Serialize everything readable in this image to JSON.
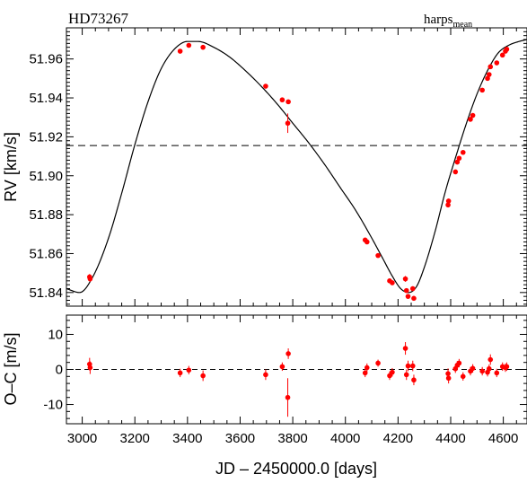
{
  "chart_data": [
    {
      "type": "scatter",
      "panel": "rv",
      "star": "HD73267",
      "instrument": "harps",
      "instrument_sub": "mean",
      "ylabel": "RV [km/s]",
      "xlim": [
        2940,
        4690
      ],
      "ylim": [
        51.833,
        51.976
      ],
      "yticks": [
        51.84,
        51.86,
        51.88,
        51.9,
        51.92,
        51.94,
        51.96
      ],
      "grid": false,
      "mean_rv": 51.9155,
      "model": {
        "name": "Keplerian fit",
        "x": [
          2940,
          2990,
          3040,
          3100,
          3150,
          3200,
          3250,
          3300,
          3350,
          3400,
          3440,
          3500,
          3560,
          3620,
          3680,
          3740,
          3800,
          3860,
          3920,
          3980,
          4040,
          4100,
          4140,
          4180,
          4210,
          4240,
          4270,
          4300,
          4340,
          4380,
          4420,
          4460,
          4500,
          4540,
          4580,
          4620,
          4660,
          4690
        ],
        "y": [
          51.842,
          51.84,
          51.848,
          51.868,
          51.891,
          51.916,
          51.938,
          51.955,
          51.965,
          51.969,
          51.969,
          51.966,
          51.961,
          51.954,
          51.946,
          51.937,
          51.927,
          51.917,
          51.906,
          51.894,
          51.882,
          51.868,
          51.858,
          51.848,
          51.842,
          51.84,
          51.843,
          51.853,
          51.871,
          51.892,
          51.91,
          51.927,
          51.942,
          51.954,
          51.963,
          51.967,
          51.969,
          51.97
        ]
      },
      "points": [
        {
          "x": 3028,
          "y": 51.848,
          "err": 0.0015
        },
        {
          "x": 3030,
          "y": 51.847,
          "err": 0.0015
        },
        {
          "x": 3372,
          "y": 51.964,
          "err": 0.001
        },
        {
          "x": 3405,
          "y": 51.967,
          "err": 0.001
        },
        {
          "x": 3459,
          "y": 51.966,
          "err": 0.001
        },
        {
          "x": 3697,
          "y": 51.946,
          "err": 0.001
        },
        {
          "x": 3760,
          "y": 51.939,
          "err": 0.001
        },
        {
          "x": 3781,
          "y": 51.927,
          "err": 0.005
        },
        {
          "x": 3783,
          "y": 51.938,
          "err": 0.0012
        },
        {
          "x": 4075,
          "y": 51.867,
          "err": 0.001
        },
        {
          "x": 4082,
          "y": 51.866,
          "err": 0.001
        },
        {
          "x": 4124,
          "y": 51.859,
          "err": 0.001
        },
        {
          "x": 4168,
          "y": 51.846,
          "err": 0.001
        },
        {
          "x": 4178,
          "y": 51.845,
          "err": 0.001
        },
        {
          "x": 4228,
          "y": 51.847,
          "err": 0.0015
        },
        {
          "x": 4232,
          "y": 51.841,
          "err": 0.0012
        },
        {
          "x": 4238,
          "y": 51.838,
          "err": 0.001
        },
        {
          "x": 4256,
          "y": 51.842,
          "err": 0.0012
        },
        {
          "x": 4260,
          "y": 51.837,
          "err": 0.0012
        },
        {
          "x": 4390,
          "y": 51.885,
          "err": 0.0012
        },
        {
          "x": 4392,
          "y": 51.887,
          "err": 0.0012
        },
        {
          "x": 4418,
          "y": 51.902,
          "err": 0.001
        },
        {
          "x": 4425,
          "y": 51.907,
          "err": 0.001
        },
        {
          "x": 4432,
          "y": 51.909,
          "err": 0.001
        },
        {
          "x": 4447,
          "y": 51.912,
          "err": 0.001
        },
        {
          "x": 4475,
          "y": 51.929,
          "err": 0.001
        },
        {
          "x": 4484,
          "y": 51.931,
          "err": 0.001
        },
        {
          "x": 4520,
          "y": 51.944,
          "err": 0.001
        },
        {
          "x": 4540,
          "y": 51.95,
          "err": 0.001
        },
        {
          "x": 4546,
          "y": 51.952,
          "err": 0.001
        },
        {
          "x": 4551,
          "y": 51.956,
          "err": 0.0012
        },
        {
          "x": 4575,
          "y": 51.958,
          "err": 0.001
        },
        {
          "x": 4597,
          "y": 51.962,
          "err": 0.001
        },
        {
          "x": 4608,
          "y": 51.964,
          "err": 0.001
        },
        {
          "x": 4613,
          "y": 51.965,
          "err": 0.001
        }
      ]
    },
    {
      "type": "scatter",
      "panel": "residuals",
      "xlabel": "JD – 2450000.0 [days]",
      "ylabel": "O–C [m/s]",
      "xlim": [
        2940,
        4690
      ],
      "ylim": [
        -15.5,
        15.5
      ],
      "xticks": [
        3000,
        3200,
        3400,
        3600,
        3800,
        4000,
        4200,
        4400,
        4600
      ],
      "yticks": [
        -10,
        0,
        10
      ],
      "grid": false,
      "zero_line": 0,
      "points": [
        {
          "x": 3028,
          "y": 1.5,
          "err": 1.8
        },
        {
          "x": 3030,
          "y": 0.5,
          "err": 1.8
        },
        {
          "x": 3372,
          "y": -1.0,
          "err": 1.2
        },
        {
          "x": 3405,
          "y": -0.2,
          "err": 1.2
        },
        {
          "x": 3459,
          "y": -1.8,
          "err": 1.5
        },
        {
          "x": 3697,
          "y": -1.5,
          "err": 1.5
        },
        {
          "x": 3760,
          "y": 0.8,
          "err": 1.2
        },
        {
          "x": 3781,
          "y": -8.0,
          "err": 5.5
        },
        {
          "x": 3783,
          "y": 4.5,
          "err": 1.5
        },
        {
          "x": 4075,
          "y": -1.0,
          "err": 1.2
        },
        {
          "x": 4082,
          "y": 0.5,
          "err": 1.2
        },
        {
          "x": 4124,
          "y": 1.8,
          "err": 1.0
        },
        {
          "x": 4168,
          "y": -1.8,
          "err": 1.2
        },
        {
          "x": 4178,
          "y": -0.8,
          "err": 1.2
        },
        {
          "x": 4228,
          "y": 6.0,
          "err": 1.8
        },
        {
          "x": 4232,
          "y": -1.5,
          "err": 1.5
        },
        {
          "x": 4238,
          "y": 1.0,
          "err": 1.5
        },
        {
          "x": 4256,
          "y": 1.0,
          "err": 1.5
        },
        {
          "x": 4260,
          "y": -3.0,
          "err": 1.5
        },
        {
          "x": 4390,
          "y": -1.2,
          "err": 1.5
        },
        {
          "x": 4392,
          "y": -2.5,
          "err": 1.5
        },
        {
          "x": 4418,
          "y": 0.2,
          "err": 1.2
        },
        {
          "x": 4425,
          "y": 1.2,
          "err": 1.2
        },
        {
          "x": 4432,
          "y": 1.8,
          "err": 1.2
        },
        {
          "x": 4447,
          "y": -2.0,
          "err": 1.2
        },
        {
          "x": 4475,
          "y": -0.5,
          "err": 1.2
        },
        {
          "x": 4484,
          "y": 0.3,
          "err": 1.2
        },
        {
          "x": 4520,
          "y": -0.5,
          "err": 1.2
        },
        {
          "x": 4540,
          "y": -0.8,
          "err": 1.2
        },
        {
          "x": 4546,
          "y": 0.2,
          "err": 1.2
        },
        {
          "x": 4551,
          "y": 2.8,
          "err": 1.5
        },
        {
          "x": 4575,
          "y": -1.0,
          "err": 1.2
        },
        {
          "x": 4597,
          "y": 0.8,
          "err": 1.2
        },
        {
          "x": 4608,
          "y": 0.5,
          "err": 1.2
        },
        {
          "x": 4613,
          "y": 0.8,
          "err": 1.2
        }
      ]
    }
  ],
  "colors": {
    "points": "#ff0000",
    "model": "#000000",
    "axes": "#000000",
    "reference_line": "#000000"
  }
}
